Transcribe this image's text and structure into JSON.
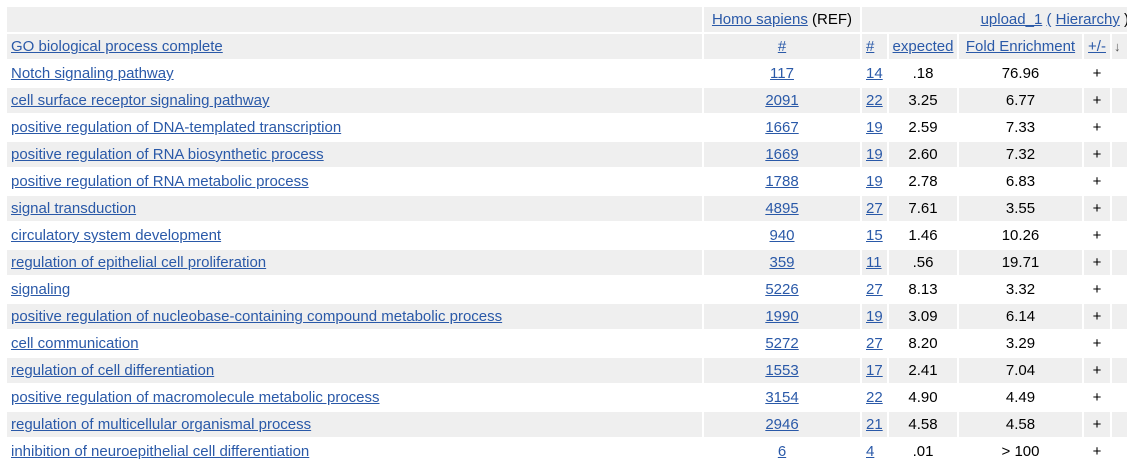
{
  "header": {
    "ref_organism_link": "Homo sapiens",
    "ref_organism_suffix": "(REF)",
    "upload_link": "upload_1",
    "hierarchy_open": "(",
    "hierarchy_link": "Hierarchy",
    "hierarchy_close": ")",
    "col_term": "GO biological process complete",
    "col_ref_count": "#",
    "col_count": "#",
    "col_expected": "expected",
    "col_fold": "Fold Enrichment",
    "col_direction": "+/-",
    "col_extra_glyph": "↓"
  },
  "rows": [
    {
      "term": "Notch signaling pathway",
      "ref": "117",
      "count": "14",
      "expected": ".18",
      "fold": "76.96",
      "dir": "+"
    },
    {
      "term": "cell surface receptor signaling pathway",
      "ref": "2091",
      "count": "22",
      "expected": "3.25",
      "fold": "6.77",
      "dir": "+"
    },
    {
      "term": "positive regulation of DNA-templated transcription",
      "ref": "1667",
      "count": "19",
      "expected": "2.59",
      "fold": "7.33",
      "dir": "+"
    },
    {
      "term": "positive regulation of RNA biosynthetic process",
      "ref": "1669",
      "count": "19",
      "expected": "2.60",
      "fold": "7.32",
      "dir": "+"
    },
    {
      "term": "positive regulation of RNA metabolic process",
      "ref": "1788",
      "count": "19",
      "expected": "2.78",
      "fold": "6.83",
      "dir": "+"
    },
    {
      "term": "signal transduction",
      "ref": "4895",
      "count": "27",
      "expected": "7.61",
      "fold": "3.55",
      "dir": "+"
    },
    {
      "term": "circulatory system development",
      "ref": "940",
      "count": "15",
      "expected": "1.46",
      "fold": "10.26",
      "dir": "+"
    },
    {
      "term": "regulation of epithelial cell proliferation",
      "ref": "359",
      "count": "11",
      "expected": ".56",
      "fold": "19.71",
      "dir": "+"
    },
    {
      "term": "signaling",
      "ref": "5226",
      "count": "27",
      "expected": "8.13",
      "fold": "3.32",
      "dir": "+"
    },
    {
      "term": "positive regulation of nucleobase-containing compound metabolic process",
      "ref": "1990",
      "count": "19",
      "expected": "3.09",
      "fold": "6.14",
      "dir": "+"
    },
    {
      "term": "cell communication",
      "ref": "5272",
      "count": "27",
      "expected": "8.20",
      "fold": "3.29",
      "dir": "+"
    },
    {
      "term": "regulation of cell differentiation",
      "ref": "1553",
      "count": "17",
      "expected": "2.41",
      "fold": "7.04",
      "dir": "+"
    },
    {
      "term": "positive regulation of macromolecule metabolic process",
      "ref": "3154",
      "count": "22",
      "expected": "4.90",
      "fold": "4.49",
      "dir": "+"
    },
    {
      "term": "regulation of multicellular organismal process",
      "ref": "2946",
      "count": "21",
      "expected": "4.58",
      "fold": "4.58",
      "dir": "+"
    },
    {
      "term": "inhibition of neuroepithelial cell differentiation",
      "ref": "6",
      "count": "4",
      "expected": ".01",
      "fold": "> 100",
      "dir": "+"
    }
  ]
}
